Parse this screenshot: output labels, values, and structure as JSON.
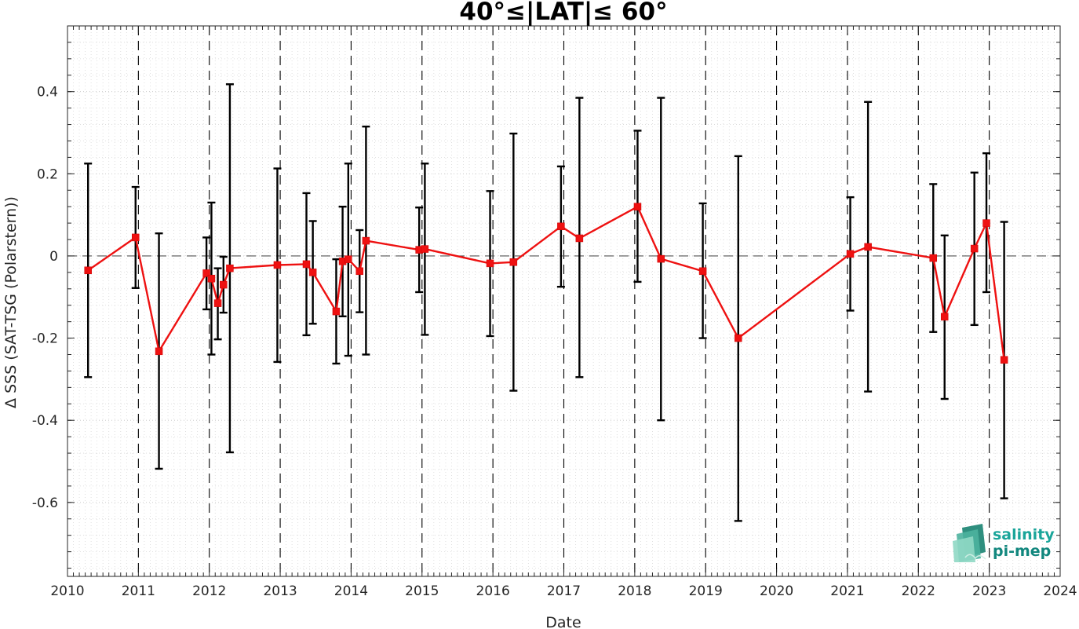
{
  "chart_data": {
    "type": "scatter",
    "title": "40°≤|LAT|≤ 60°",
    "xlabel": "Date",
    "ylabel": "Δ SSS (SAT-TSG (Polarstern))",
    "xlim": [
      2010,
      2024
    ],
    "ylim": [
      -0.78,
      0.56
    ],
    "xticks": [
      2010,
      2011,
      2012,
      2013,
      2014,
      2015,
      2016,
      2017,
      2018,
      2019,
      2020,
      2021,
      2022,
      2023,
      2024
    ],
    "xtick_labels": [
      "2010",
      "2011",
      "2012",
      "2013",
      "2014",
      "2015",
      "2016",
      "2017",
      "2018",
      "2019",
      "2020",
      "2021",
      "2022",
      "2023",
      "2024"
    ],
    "yticks": [
      -0.6,
      -0.4,
      -0.2,
      0,
      0.2,
      0.4
    ],
    "ytick_labels": [
      "-0.6",
      "-0.4",
      "-0.2",
      "0",
      "0.2",
      "0.4"
    ],
    "grid": true,
    "minor_grid": true,
    "zero_line": true,
    "year_lines": [
      2011,
      2012,
      2013,
      2014,
      2015,
      2016,
      2017,
      2018,
      2019,
      2020,
      2021,
      2022,
      2023
    ],
    "series": [
      {
        "color": "#ee1111",
        "marker": "square",
        "points": [
          {
            "x": 2010.29,
            "y": -0.035,
            "err_low": -0.295,
            "err_high": 0.225
          },
          {
            "x": 2010.96,
            "y": 0.045,
            "err_low": -0.078,
            "err_high": 0.168
          },
          {
            "x": 2011.29,
            "y": -0.232,
            "err_low": -0.518,
            "err_high": 0.055
          },
          {
            "x": 2011.96,
            "y": -0.042,
            "err_low": -0.13,
            "err_high": 0.045
          },
          {
            "x": 2012.03,
            "y": -0.055,
            "err_low": -0.24,
            "err_high": 0.13
          },
          {
            "x": 2012.12,
            "y": -0.115,
            "err_low": -0.203,
            "err_high": -0.03
          },
          {
            "x": 2012.2,
            "y": -0.07,
            "err_low": -0.138,
            "err_high": -0.002
          },
          {
            "x": 2012.29,
            "y": -0.03,
            "err_low": -0.478,
            "err_high": 0.418
          },
          {
            "x": 2012.96,
            "y": -0.022,
            "err_low": -0.258,
            "err_high": 0.213
          },
          {
            "x": 2013.37,
            "y": -0.02,
            "err_low": -0.193,
            "err_high": 0.153
          },
          {
            "x": 2013.46,
            "y": -0.04,
            "err_low": -0.165,
            "err_high": 0.085
          },
          {
            "x": 2013.79,
            "y": -0.135,
            "err_low": -0.262,
            "err_high": -0.008
          },
          {
            "x": 2013.88,
            "y": -0.013,
            "err_low": -0.147,
            "err_high": 0.12
          },
          {
            "x": 2013.96,
            "y": -0.008,
            "err_low": -0.243,
            "err_high": 0.225
          },
          {
            "x": 2014.12,
            "y": -0.037,
            "err_low": -0.137,
            "err_high": 0.063
          },
          {
            "x": 2014.21,
            "y": 0.037,
            "err_low": -0.24,
            "err_high": 0.315
          },
          {
            "x": 2014.96,
            "y": 0.015,
            "err_low": -0.088,
            "err_high": 0.118
          },
          {
            "x": 2015.04,
            "y": 0.017,
            "err_low": -0.192,
            "err_high": 0.225
          },
          {
            "x": 2015.96,
            "y": -0.018,
            "err_low": -0.195,
            "err_high": 0.158
          },
          {
            "x": 2016.29,
            "y": -0.015,
            "err_low": -0.328,
            "err_high": 0.298
          },
          {
            "x": 2016.96,
            "y": 0.072,
            "err_low": -0.075,
            "err_high": 0.218
          },
          {
            "x": 2017.22,
            "y": 0.043,
            "err_low": -0.295,
            "err_high": 0.385
          },
          {
            "x": 2018.04,
            "y": 0.12,
            "err_low": -0.063,
            "err_high": 0.305
          },
          {
            "x": 2018.37,
            "y": -0.007,
            "err_low": -0.4,
            "err_high": 0.385
          },
          {
            "x": 2018.96,
            "y": -0.037,
            "err_low": -0.2,
            "err_high": 0.128
          },
          {
            "x": 2019.46,
            "y": -0.2,
            "err_low": -0.645,
            "err_high": 0.243
          },
          {
            "x": 2021.04,
            "y": 0.005,
            "err_low": -0.133,
            "err_high": 0.143
          },
          {
            "x": 2021.29,
            "y": 0.022,
            "err_low": -0.33,
            "err_high": 0.375
          },
          {
            "x": 2022.21,
            "y": -0.005,
            "err_low": -0.185,
            "err_high": 0.175
          },
          {
            "x": 2022.37,
            "y": -0.148,
            "err_low": -0.348,
            "err_high": 0.05
          },
          {
            "x": 2022.79,
            "y": 0.018,
            "err_low": -0.168,
            "err_high": 0.203
          },
          {
            "x": 2022.96,
            "y": 0.08,
            "err_low": -0.088,
            "err_high": 0.25
          },
          {
            "x": 2023.21,
            "y": -0.253,
            "err_low": -0.59,
            "err_high": 0.083
          }
        ]
      }
    ]
  },
  "logo": {
    "line1": "salinity",
    "line2": "pi-mep",
    "line1_color": "#1aa59a",
    "line2_color": "#12877e"
  }
}
